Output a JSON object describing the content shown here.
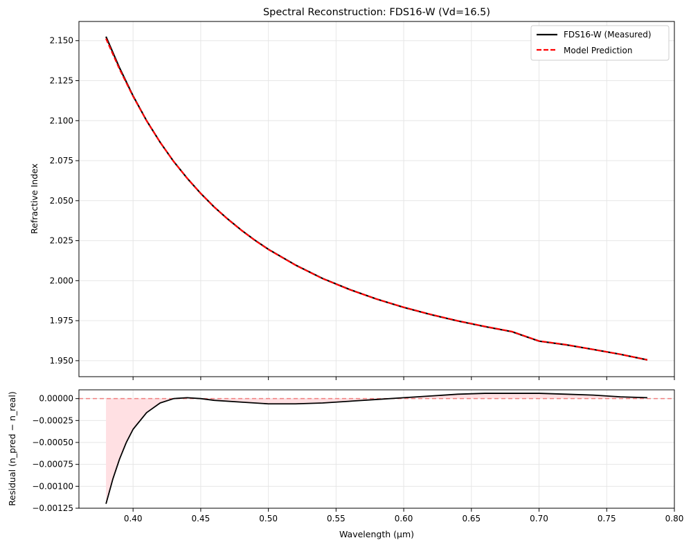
{
  "chart_data": [
    {
      "type": "line",
      "title": "Spectral Reconstruction: FDS16-W (Vd=16.5)",
      "xlabel": "",
      "ylabel": "Refractive Index",
      "xlim": [
        0.36,
        0.8
      ],
      "ylim": [
        1.94,
        2.162
      ],
      "yticks": [
        "1.950",
        "1.975",
        "2.000",
        "2.025",
        "2.050",
        "2.075",
        "2.100",
        "2.125",
        "2.150"
      ],
      "grid": true,
      "legend_position": "top-right",
      "series": [
        {
          "name": "FDS16-W (Measured)",
          "color": "#000000",
          "style": "solid",
          "x": [
            0.38,
            0.39,
            0.4,
            0.41,
            0.42,
            0.43,
            0.44,
            0.45,
            0.46,
            0.47,
            0.48,
            0.49,
            0.5,
            0.52,
            0.54,
            0.56,
            0.58,
            0.6,
            0.62,
            0.64,
            0.66,
            0.68,
            0.7,
            0.72,
            0.74,
            0.76,
            0.78
          ],
          "values": [
            2.1525,
            2.133,
            2.1155,
            2.1,
            2.0865,
            2.0745,
            2.064,
            2.0545,
            2.046,
            2.0385,
            2.0316,
            2.0253,
            2.0196,
            2.0098,
            2.0014,
            1.9945,
            1.9885,
            1.9833,
            1.9788,
            1.9748,
            1.9713,
            1.9681,
            1.9622,
            1.9599,
            1.957,
            1.954,
            1.9505
          ]
        },
        {
          "name": "Model Prediction",
          "color": "#ff0000",
          "style": "dashed",
          "x": [
            0.38,
            0.39,
            0.4,
            0.41,
            0.42,
            0.43,
            0.44,
            0.45,
            0.46,
            0.47,
            0.48,
            0.49,
            0.5,
            0.52,
            0.54,
            0.56,
            0.58,
            0.6,
            0.62,
            0.64,
            0.66,
            0.68,
            0.7,
            0.72,
            0.74,
            0.76,
            0.78
          ],
          "values": [
            2.1513,
            2.1322,
            2.1152,
            2.0999,
            2.0865,
            2.0745,
            2.064,
            2.0545,
            2.046,
            2.0384,
            2.0315,
            2.0252,
            2.0195,
            2.0097,
            2.0013,
            1.9944,
            1.9885,
            1.9834,
            1.9789,
            1.9749,
            1.9714,
            1.9682,
            1.9623,
            1.96,
            1.957,
            1.954,
            1.9505
          ]
        }
      ]
    },
    {
      "type": "line",
      "xlabel": "Wavelength (μm)",
      "ylabel": "Residual (n_pred − n_real)",
      "xlim": [
        0.36,
        0.8
      ],
      "ylim": [
        -0.00125,
        0.0001
      ],
      "xticks": [
        "0.40",
        "0.45",
        "0.50",
        "0.55",
        "0.60",
        "0.65",
        "0.70",
        "0.75",
        "0.80"
      ],
      "yticks": [
        "−0.00125",
        "−0.00100",
        "−0.00075",
        "−0.00050",
        "−0.00025",
        "0.00000"
      ],
      "grid": true,
      "zero_line": {
        "y": 0,
        "color": "#f08080",
        "style": "dashed"
      },
      "fill_color": "#ffe0e3",
      "series": [
        {
          "name": "Residual",
          "color": "#000000",
          "x": [
            0.38,
            0.385,
            0.39,
            0.395,
            0.4,
            0.41,
            0.42,
            0.43,
            0.44,
            0.45,
            0.46,
            0.48,
            0.5,
            0.52,
            0.54,
            0.56,
            0.58,
            0.6,
            0.62,
            0.64,
            0.66,
            0.68,
            0.7,
            0.72,
            0.74,
            0.76,
            0.78
          ],
          "values": [
            -0.0012,
            -0.00092,
            -0.00069,
            -0.0005,
            -0.00035,
            -0.00016,
            -5e-05,
            0.0,
            1e-05,
            0.0,
            -2e-05,
            -4e-05,
            -6e-05,
            -6e-05,
            -5e-05,
            -3e-05,
            -1e-05,
            1e-05,
            3e-05,
            5e-05,
            6e-05,
            6e-05,
            6e-05,
            5e-05,
            4e-05,
            2e-05,
            1e-05
          ]
        }
      ]
    }
  ]
}
